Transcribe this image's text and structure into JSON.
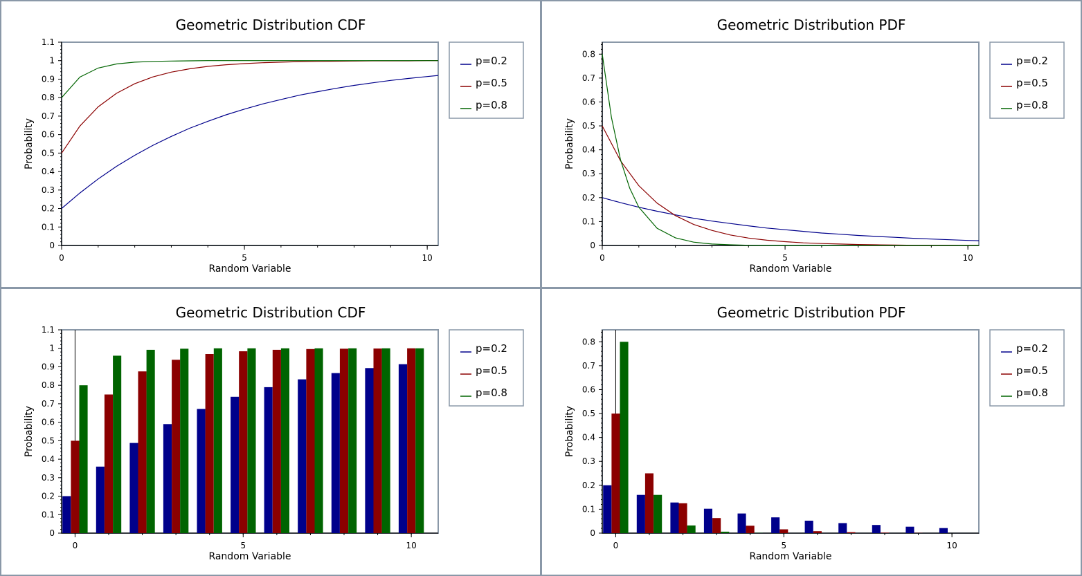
{
  "colors": {
    "p02": "#00008b",
    "p05": "#8b0000",
    "p08": "#006400",
    "frame": "#8a98a8"
  },
  "chart_data": [
    {
      "type": "line",
      "title": "Geometric Distribution CDF",
      "xlabel": "Random Variable",
      "ylabel": "Probability",
      "xlim": [
        0,
        10.3
      ],
      "ylim": [
        0,
        1.1
      ],
      "xticks": [
        "0",
        "5",
        "10"
      ],
      "yticks": [
        "0",
        "0.1",
        "0.2",
        "0.3",
        "0.4",
        "0.5",
        "0.6",
        "0.7",
        "0.8",
        "0.9",
        "1",
        "1.1"
      ],
      "legend": "right",
      "series": [
        {
          "name": "p=0.2",
          "x": [
            0,
            0.5,
            1,
            1.5,
            2,
            2.5,
            3,
            3.5,
            4,
            4.5,
            5,
            5.5,
            6,
            6.5,
            7,
            7.5,
            8,
            8.5,
            9,
            9.5,
            10,
            10.3
          ],
          "values": [
            0.2,
            0.284,
            0.36,
            0.428,
            0.488,
            0.542,
            0.59,
            0.634,
            0.672,
            0.707,
            0.738,
            0.766,
            0.79,
            0.813,
            0.832,
            0.85,
            0.866,
            0.88,
            0.893,
            0.904,
            0.914,
            0.92
          ]
        },
        {
          "name": "p=0.5",
          "x": [
            0,
            0.5,
            1,
            1.5,
            2,
            2.5,
            3,
            3.5,
            4,
            4.5,
            5,
            5.5,
            6,
            6.5,
            7,
            7.5,
            8,
            8.5,
            9,
            9.5,
            10,
            10.3
          ],
          "values": [
            0.5,
            0.646,
            0.75,
            0.823,
            0.875,
            0.912,
            0.938,
            0.956,
            0.969,
            0.978,
            0.984,
            0.989,
            0.992,
            0.995,
            0.996,
            0.997,
            0.998,
            0.999,
            0.999,
            0.999,
            1.0,
            1.0
          ]
        },
        {
          "name": "p=0.8",
          "x": [
            0,
            0.5,
            1,
            1.5,
            2,
            2.5,
            3,
            3.5,
            4,
            4.5,
            5,
            5.5,
            6,
            6.5,
            7,
            7.5,
            8,
            8.5,
            9,
            9.5,
            10,
            10.3
          ],
          "values": [
            0.8,
            0.911,
            0.96,
            0.982,
            0.992,
            0.996,
            0.998,
            0.999,
            1.0,
            1.0,
            1.0,
            1.0,
            1.0,
            1.0,
            1.0,
            1.0,
            1.0,
            1.0,
            1.0,
            1.0,
            1.0,
            1.0
          ]
        }
      ]
    },
    {
      "type": "line",
      "title": "Geometric Distribution PDF",
      "xlabel": "Random Variable",
      "ylabel": "Probability",
      "xlim": [
        0,
        10.3
      ],
      "ylim": [
        0,
        0.85
      ],
      "xticks": [
        "0",
        "5",
        "10"
      ],
      "yticks": [
        "0",
        "0.1",
        "0.2",
        "0.3",
        "0.4",
        "0.5",
        "0.6",
        "0.7",
        "0.8"
      ],
      "legend": "right",
      "series": [
        {
          "name": "p=0.2",
          "x": [
            0,
            0.5,
            1,
            1.5,
            2,
            2.5,
            3,
            3.5,
            4,
            4.5,
            5,
            5.5,
            6,
            6.5,
            7,
            7.5,
            8,
            8.5,
            9,
            9.5,
            10,
            10.3
          ],
          "values": [
            0.2,
            0.179,
            0.16,
            0.143,
            0.128,
            0.114,
            0.102,
            0.092,
            0.082,
            0.073,
            0.066,
            0.059,
            0.052,
            0.047,
            0.042,
            0.038,
            0.034,
            0.03,
            0.027,
            0.024,
            0.021,
            0.02
          ]
        },
        {
          "name": "p=0.5",
          "x": [
            0,
            0.5,
            1,
            1.5,
            2,
            2.5,
            3,
            3.5,
            4,
            4.5,
            5,
            5.5,
            6,
            6.5,
            7,
            7.5,
            8,
            8.5,
            9,
            9.5,
            10,
            10.3
          ],
          "values": [
            0.5,
            0.354,
            0.25,
            0.177,
            0.125,
            0.088,
            0.063,
            0.044,
            0.031,
            0.022,
            0.016,
            0.011,
            0.008,
            0.006,
            0.004,
            0.003,
            0.002,
            0.001,
            0.001,
            0.001,
            0.0,
            0.0
          ]
        },
        {
          "name": "p=0.8",
          "x": [
            0,
            0.25,
            0.5,
            0.75,
            1,
            1.5,
            2,
            2.5,
            3,
            3.5,
            4,
            5,
            6,
            7,
            8,
            9,
            10,
            10.3
          ],
          "values": [
            0.8,
            0.536,
            0.358,
            0.24,
            0.16,
            0.072,
            0.032,
            0.014,
            0.006,
            0.003,
            0.001,
            0.0,
            0.0,
            0.0,
            0.0,
            0.0,
            0.0,
            0.0
          ]
        }
      ]
    },
    {
      "type": "bar",
      "title": "Geometric Distribution CDF",
      "xlabel": "Random Variable",
      "ylabel": "Probability",
      "xlim": [
        -0.4,
        10.8
      ],
      "ylim": [
        0,
        1.1
      ],
      "xticks": [
        "0",
        "5",
        "10"
      ],
      "yticks": [
        "0",
        "0.1",
        "0.2",
        "0.3",
        "0.4",
        "0.5",
        "0.6",
        "0.7",
        "0.8",
        "0.9",
        "1",
        "1.1"
      ],
      "legend": "right",
      "categories": [
        0,
        1,
        2,
        3,
        4,
        5,
        6,
        7,
        8,
        9,
        10
      ],
      "series": [
        {
          "name": "p=0.2",
          "values": [
            0.2,
            0.36,
            0.488,
            0.59,
            0.672,
            0.738,
            0.79,
            0.832,
            0.866,
            0.893,
            0.914
          ]
        },
        {
          "name": "p=0.5",
          "values": [
            0.5,
            0.75,
            0.875,
            0.938,
            0.969,
            0.984,
            0.992,
            0.996,
            0.998,
            0.999,
            1.0
          ]
        },
        {
          "name": "p=0.8",
          "values": [
            0.8,
            0.96,
            0.992,
            0.998,
            1.0,
            1.0,
            1.0,
            1.0,
            1.0,
            1.0,
            1.0
          ]
        }
      ]
    },
    {
      "type": "bar",
      "title": "Geometric Distribution PDF",
      "xlabel": "Random Variable",
      "ylabel": "Probability",
      "xlim": [
        -0.4,
        10.8
      ],
      "ylim": [
        0,
        0.85
      ],
      "xticks": [
        "0",
        "5",
        "10"
      ],
      "yticks": [
        "0",
        "0.1",
        "0.2",
        "0.3",
        "0.4",
        "0.5",
        "0.6",
        "0.7",
        "0.8"
      ],
      "legend": "right",
      "categories": [
        0,
        1,
        2,
        3,
        4,
        5,
        6,
        7,
        8,
        9,
        10
      ],
      "series": [
        {
          "name": "p=0.2",
          "values": [
            0.2,
            0.16,
            0.128,
            0.102,
            0.082,
            0.066,
            0.052,
            0.042,
            0.034,
            0.027,
            0.021
          ]
        },
        {
          "name": "p=0.5",
          "values": [
            0.5,
            0.25,
            0.125,
            0.063,
            0.031,
            0.016,
            0.008,
            0.004,
            0.002,
            0.001,
            0.0
          ]
        },
        {
          "name": "p=0.8",
          "values": [
            0.8,
            0.16,
            0.032,
            0.006,
            0.001,
            0.0,
            0.0,
            0.0,
            0.0,
            0.0,
            0.0
          ]
        }
      ]
    }
  ]
}
